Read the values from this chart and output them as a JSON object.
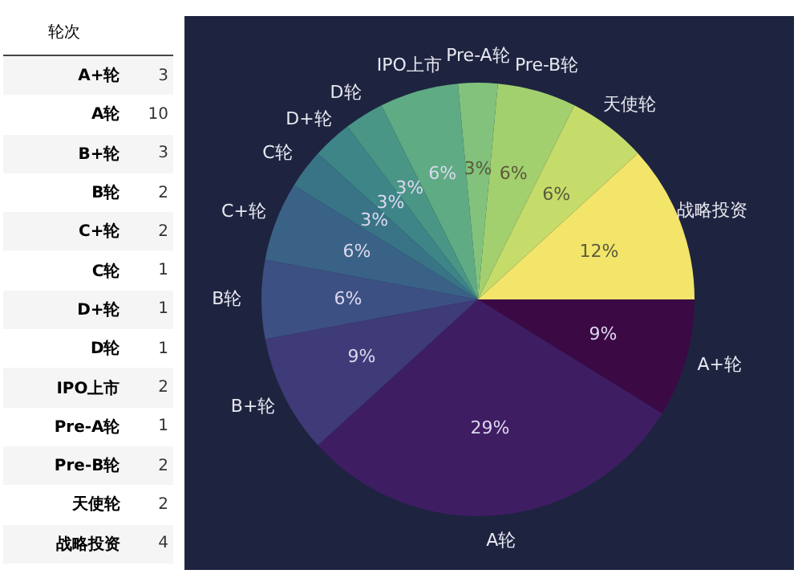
{
  "chart_data": [
    {
      "type": "other",
      "xlabel": "轮次",
      "categories": [
        "A+轮",
        "A轮",
        "B+轮",
        "B轮",
        "C+轮",
        "C轮",
        "D+轮",
        "D轮",
        "IPO上市",
        "Pre-A轮",
        "Pre-B轮",
        "天使轮",
        "战略投资"
      ],
      "values": [
        3,
        10,
        3,
        2,
        2,
        1,
        1,
        1,
        2,
        1,
        2,
        2,
        4
      ],
      "data_labels": true
    },
    {
      "type": "pie",
      "categories": [
        "A+轮",
        "A轮",
        "B+轮",
        "B轮",
        "C+轮",
        "C轮",
        "D+轮",
        "D轮",
        "IPO上市",
        "Pre-A轮",
        "Pre-B轮",
        "天使轮",
        "战略投资"
      ],
      "values": [
        8.82,
        29.41,
        8.82,
        5.88,
        5.88,
        2.94,
        2.94,
        2.94,
        5.88,
        2.94,
        5.88,
        5.88,
        11.77
      ],
      "value_labels": [
        "9%",
        "29%",
        "9%",
        "6%",
        "6%",
        "3%",
        "3%",
        "3%",
        "6%",
        "3%",
        "6%",
        "6%",
        "12%"
      ],
      "colors": [
        "#3b0a45",
        "#3f1d63",
        "#3f3a78",
        "#3d5083",
        "#3a6286",
        "#387486",
        "#3e8587",
        "#4a9686",
        "#5fab84",
        "#82c27d",
        "#a3d06f",
        "#c5dc6a",
        "#f2e56a"
      ],
      "legend": false
    }
  ]
}
